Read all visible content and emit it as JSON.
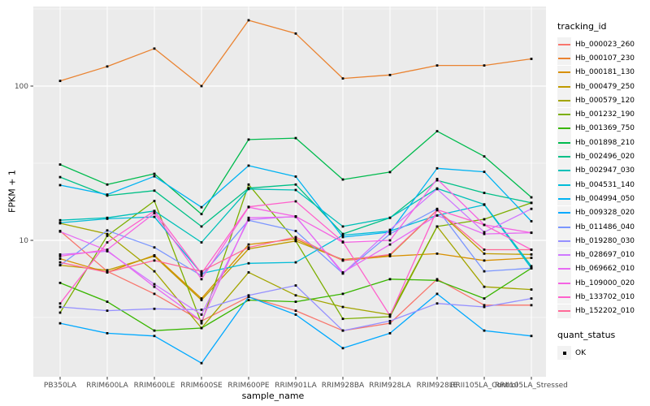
{
  "figure": {
    "bg_color": "#FFFFFF",
    "panel_bg_color": "#EBEBEB",
    "grid_color": "#FFFFFF",
    "tick_mark_color": "#333333",
    "axis_text_color": "#4D4D4D",
    "point_color": "#000000"
  },
  "axes": {
    "x_title": "sample_name",
    "y_title": "FPKM + 1",
    "y_tick_labels": [
      "100",
      "10"
    ]
  },
  "legend": {
    "tracking_title": "tracking_id",
    "quant_title": "quant_status",
    "quant_items": [
      {
        "label": "OK",
        "key": "black-square"
      }
    ]
  },
  "chart_data": {
    "type": "line",
    "title": "",
    "xlabel": "sample_name",
    "ylabel": "FPKM + 1",
    "yscale": "log10",
    "ylim": [
      1.3,
      330
    ],
    "y_major_ticks": [
      100,
      10
    ],
    "y_minor_gridlines": [
      316.2,
      31.62,
      3.162
    ],
    "grid": true,
    "legend_position": "right",
    "point_shape": "filled-black-square",
    "categories": [
      "PB350LA",
      "RRIM600LA",
      "RRIM600LE",
      "RRIM600SE",
      "RRIM600PE",
      "RRIM901LA",
      "RRIM928BA",
      "RRIM928LA",
      "RRIM928LE",
      "RRII105LA_Control",
      "RRII105LA_Stressed"
    ],
    "series": [
      {
        "name": "Hb_000023_260",
        "color": "#F8766D",
        "values": [
          11.5,
          6.3,
          4.5,
          3.0,
          4.3,
          3.5,
          2.6,
          2.9,
          5.6,
          3.8,
          3.8
        ]
      },
      {
        "name": "Hb_000107_230",
        "color": "#EA8331",
        "values": [
          108,
          134,
          175,
          100,
          267,
          219,
          112,
          118,
          136,
          136,
          150
        ]
      },
      {
        "name": "Hb_000181_130",
        "color": "#D89000",
        "values": [
          7.6,
          6.2,
          8.0,
          4.2,
          9.4,
          10.2,
          7.4,
          7.9,
          8.2,
          7.4,
          7.7
        ]
      },
      {
        "name": "Hb_000479_250",
        "color": "#C09B00",
        "values": [
          6.9,
          6.4,
          7.9,
          4.1,
          8.8,
          9.9,
          7.5,
          8.0,
          15.7,
          8.2,
          8.1
        ]
      },
      {
        "name": "Hb_000579_120",
        "color": "#A3A500",
        "values": [
          12.9,
          11.0,
          6.3,
          2.7,
          6.2,
          4.4,
          3.7,
          3.3,
          12.3,
          5.0,
          4.8
        ]
      },
      {
        "name": "Hb_001232_190",
        "color": "#7CAE00",
        "values": [
          3.4,
          10.7,
          18.0,
          2.9,
          23.0,
          9.9,
          3.1,
          3.2,
          12.3,
          13.7,
          17.5
        ]
      },
      {
        "name": "Hb_001369_750",
        "color": "#39B600",
        "values": [
          5.3,
          4.0,
          2.6,
          2.7,
          4.1,
          4.0,
          4.5,
          5.6,
          5.5,
          4.2,
          6.6
        ]
      },
      {
        "name": "Hb_001898_210",
        "color": "#00BB4E",
        "values": [
          31,
          23,
          27,
          14.8,
          45,
          46,
          24.8,
          27.7,
          51,
          35,
          19
        ]
      },
      {
        "name": "Hb_002496_020",
        "color": "#00C087",
        "values": [
          25.7,
          19.5,
          21,
          12.3,
          21.8,
          23,
          11,
          14,
          24.5,
          20.3,
          17.5
        ]
      },
      {
        "name": "Hb_002947_030",
        "color": "#00C0B8",
        "values": [
          13.5,
          14.0,
          15.5,
          9.7,
          21.5,
          21.2,
          12.3,
          14.0,
          21.7,
          17.1,
          6.8
        ]
      },
      {
        "name": "Hb_004531_140",
        "color": "#00BCD8",
        "values": [
          13.0,
          13.8,
          14.2,
          6.1,
          7.1,
          7.2,
          10.8,
          11.5,
          14.5,
          17.0,
          6.6
        ]
      },
      {
        "name": "Hb_004994_050",
        "color": "#00B3F2",
        "values": [
          22.8,
          19.8,
          26,
          16.4,
          30.5,
          25.9,
          10.5,
          11.3,
          29.3,
          27.8,
          13.3
        ]
      },
      {
        "name": "Hb_009328_020",
        "color": "#00A9FF",
        "values": [
          2.9,
          2.5,
          2.4,
          1.6,
          4.3,
          3.3,
          2.0,
          2.5,
          4.5,
          2.6,
          2.4
        ]
      },
      {
        "name": "Hb_011486_040",
        "color": "#7B96FF",
        "values": [
          6.9,
          11.6,
          9.0,
          5.9,
          13.5,
          11.5,
          6.1,
          11.0,
          16.0,
          6.3,
          6.6
        ]
      },
      {
        "name": "Hb_019280_030",
        "color": "#9590FF",
        "values": [
          3.7,
          3.5,
          3.6,
          3.55,
          4.4,
          5.1,
          2.6,
          3.0,
          3.9,
          3.7,
          4.2
        ]
      },
      {
        "name": "Hb_028697_010",
        "color": "#CF78FF",
        "values": [
          8.1,
          8.5,
          5.2,
          3.3,
          13.6,
          14.3,
          6.1,
          11.7,
          21.5,
          11.3,
          16.0
        ]
      },
      {
        "name": "Hb_069662_010",
        "color": "#E76BF3",
        "values": [
          11.4,
          8.6,
          5.0,
          3.0,
          14.0,
          14.2,
          6.2,
          9.4,
          14.5,
          11.0,
          11.2
        ]
      },
      {
        "name": "Hb_109000_020",
        "color": "#F564E3",
        "values": [
          7.9,
          8.7,
          15.0,
          5.6,
          16.4,
          14.3,
          9.7,
          10.0,
          25.0,
          12.6,
          11.2
        ]
      },
      {
        "name": "Hb_133702_010",
        "color": "#FF61CC",
        "values": [
          3.9,
          9.7,
          15.5,
          6.1,
          16.5,
          17.9,
          9.8,
          3.25,
          15.8,
          12.6,
          8.7
        ]
      },
      {
        "name": "Hb_152202_010",
        "color": "#FF6A98",
        "values": [
          7.2,
          6.2,
          7.4,
          6.3,
          9.0,
          10.5,
          7.4,
          8.1,
          15.7,
          8.7,
          8.7
        ]
      }
    ]
  }
}
